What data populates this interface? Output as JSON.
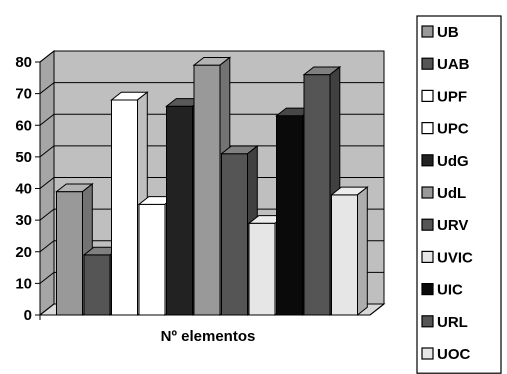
{
  "chart_data": {
    "type": "bar",
    "style": "3d-clustered-column",
    "categories": [
      "Nº elementos"
    ],
    "xlabel": "Nº elementos",
    "ylabel": "",
    "title": "",
    "ylim": [
      0,
      80
    ],
    "yticks": [
      0,
      10,
      20,
      30,
      40,
      50,
      60,
      70,
      80
    ],
    "grid": true,
    "legend_position": "right",
    "series": [
      {
        "name": "UB",
        "values": [
          39
        ],
        "color": "#999999"
      },
      {
        "name": "UAB",
        "values": [
          19
        ],
        "color": "#555555"
      },
      {
        "name": "UPF",
        "values": [
          68
        ],
        "color": "#ffffff"
      },
      {
        "name": "UPC",
        "values": [
          35
        ],
        "color": "#ffffff"
      },
      {
        "name": "UdG",
        "values": [
          66
        ],
        "color": "#222222"
      },
      {
        "name": "UdL",
        "values": [
          79
        ],
        "color": "#999999"
      },
      {
        "name": "URV",
        "values": [
          51
        ],
        "color": "#555555"
      },
      {
        "name": "UVIC",
        "values": [
          29
        ],
        "color": "#e6e6e6"
      },
      {
        "name": "UIC",
        "values": [
          63
        ],
        "color": "#0a0a0a"
      },
      {
        "name": "URL",
        "values": [
          76
        ],
        "color": "#555555"
      },
      {
        "name": "UOC",
        "values": [
          38
        ],
        "color": "#e6e6e6"
      }
    ]
  }
}
